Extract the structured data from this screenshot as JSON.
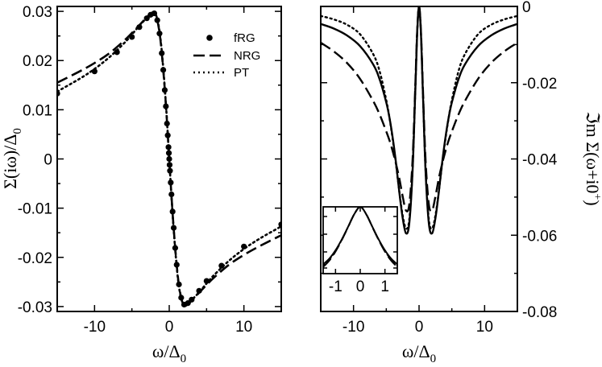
{
  "chart_data": [
    {
      "type": "line",
      "panel": "left",
      "xlabel": "ω/Δ",
      "xlabel_sub": "0",
      "ylabel": "Σ(iω)/Δ",
      "ylabel_sub": "0",
      "xlim": [
        -15,
        15
      ],
      "ylim": [
        -0.031,
        0.031
      ],
      "xticks": [
        -10,
        0,
        10
      ],
      "xtick_labels": [
        "-10",
        "0",
        "10"
      ],
      "yticks": [
        -0.03,
        -0.02,
        -0.01,
        0,
        0.01,
        0.02,
        0.03
      ],
      "ytick_labels": [
        "-0.03",
        "-0.02",
        "-0.01",
        "0",
        "0.01",
        "0.02",
        "0.03"
      ],
      "legend_position": "top-right",
      "legend": [
        "fRG",
        "NRG",
        "PT"
      ],
      "series": [
        {
          "name": "fRG",
          "style": "markers",
          "x": [
            -15,
            -10,
            -7,
            -5,
            -4,
            -3,
            -2.5,
            -2,
            -1.6,
            -1.3,
            -1.0,
            -0.8,
            -0.6,
            -0.45,
            -0.3,
            -0.2,
            -0.1,
            -0.05,
            0,
            0.05,
            0.1,
            0.2,
            0.3,
            0.45,
            0.6,
            0.8,
            1.0,
            1.3,
            1.6,
            2,
            2.5,
            3,
            4,
            5,
            7,
            10,
            15
          ],
          "y": [
            0.0133,
            0.0178,
            0.0217,
            0.0248,
            0.0268,
            0.0286,
            0.0293,
            0.0296,
            0.0282,
            0.0255,
            0.0215,
            0.0181,
            0.014,
            0.0107,
            0.0072,
            0.0048,
            0.0024,
            0.0012,
            0,
            -0.0012,
            -0.0024,
            -0.0048,
            -0.0072,
            -0.0107,
            -0.014,
            -0.0181,
            -0.0215,
            -0.0255,
            -0.0282,
            -0.0296,
            -0.0293,
            -0.0286,
            -0.0268,
            -0.0248,
            -0.0217,
            -0.0178,
            -0.0133
          ]
        },
        {
          "name": "NRG",
          "style": "dashed",
          "x": [
            -15,
            -12,
            -10,
            -8,
            -6,
            -5,
            -4,
            -3,
            -2.5,
            -2,
            -1.6,
            -1.2,
            -0.8,
            -0.4,
            0,
            0.4,
            0.8,
            1.2,
            1.6,
            2,
            2.5,
            3,
            4,
            5,
            6,
            8,
            10,
            12,
            15
          ],
          "y": [
            0.0155,
            0.0178,
            0.0195,
            0.0215,
            0.0241,
            0.0256,
            0.0272,
            0.0288,
            0.0295,
            0.0298,
            0.0282,
            0.0245,
            0.0181,
            0.0099,
            0,
            -0.0099,
            -0.0181,
            -0.0245,
            -0.0282,
            -0.0298,
            -0.0295,
            -0.0288,
            -0.0272,
            -0.0256,
            -0.0241,
            -0.0215,
            -0.0195,
            -0.0178,
            -0.0155
          ]
        },
        {
          "name": "PT",
          "style": "dotted",
          "x": [
            -15,
            -12,
            -10,
            -8,
            -6,
            -5,
            -4,
            -3,
            -2.5,
            -2,
            -1.6,
            -1.2,
            -0.8,
            -0.4,
            0,
            0.4,
            0.8,
            1.2,
            1.6,
            2,
            2.5,
            3,
            4,
            5,
            6,
            8,
            10,
            12,
            15
          ],
          "y": [
            0.0137,
            0.0163,
            0.0183,
            0.0207,
            0.0236,
            0.0253,
            0.0271,
            0.0287,
            0.0295,
            0.0298,
            0.0284,
            0.0248,
            0.0184,
            0.0101,
            0,
            -0.0101,
            -0.0184,
            -0.0248,
            -0.0284,
            -0.0298,
            -0.0295,
            -0.0287,
            -0.0271,
            -0.0253,
            -0.0236,
            -0.0207,
            -0.0183,
            -0.0163,
            -0.0137
          ]
        }
      ]
    },
    {
      "type": "line",
      "panel": "right",
      "xlabel": "ω/Δ",
      "xlabel_sub": "0",
      "ylabel": "ℑm Σ(ω+i0",
      "ylabel_sup": "+",
      "ylabel_close": ")",
      "xlim": [
        -15,
        15
      ],
      "ylim": [
        -0.08,
        0
      ],
      "xticks": [
        -10,
        0,
        10
      ],
      "xtick_labels": [
        "-10",
        "0",
        "10"
      ],
      "yticks": [
        0,
        -0.02,
        -0.04,
        -0.06,
        -0.08
      ],
      "ytick_labels": [
        "0",
        "-0.02",
        "-0.04",
        "-0.06",
        "-0.08"
      ],
      "series": [
        {
          "name": "fRG",
          "style": "solid",
          "x": [
            -15,
            -13,
            -11,
            -9,
            -7,
            -6,
            -5,
            -4.5,
            -4,
            -3.5,
            -3,
            -2.5,
            -2,
            -1.5,
            -1,
            -0.6,
            -0.3,
            0,
            0.3,
            0.6,
            1,
            1.5,
            2,
            2.5,
            3,
            3.5,
            4,
            4.5,
            5,
            6,
            7,
            9,
            11,
            13,
            15
          ],
          "y": [
            -0.0046,
            -0.0058,
            -0.0076,
            -0.0104,
            -0.0152,
            -0.0192,
            -0.0252,
            -0.0293,
            -0.0347,
            -0.0413,
            -0.0489,
            -0.0555,
            -0.0595,
            -0.057,
            -0.0435,
            -0.0235,
            -0.0075,
            0,
            -0.0075,
            -0.0235,
            -0.0435,
            -0.057,
            -0.0595,
            -0.0555,
            -0.0489,
            -0.0413,
            -0.0347,
            -0.0293,
            -0.0252,
            -0.0192,
            -0.0152,
            -0.0104,
            -0.0076,
            -0.0058,
            -0.0046
          ]
        },
        {
          "name": "NRG",
          "style": "dashed",
          "x": [
            -15,
            -13,
            -11,
            -9,
            -7,
            -6,
            -5,
            -4.5,
            -4,
            -3.5,
            -3,
            -2.5,
            -2,
            -1.5,
            -1,
            -0.6,
            -0.3,
            0,
            0.3,
            0.6,
            1,
            1.5,
            2,
            2.5,
            3,
            3.5,
            4,
            4.5,
            5,
            6,
            7,
            9,
            11,
            13,
            15
          ],
          "y": [
            -0.0095,
            -0.0118,
            -0.0148,
            -0.019,
            -0.0248,
            -0.0284,
            -0.0328,
            -0.0352,
            -0.0381,
            -0.0414,
            -0.0452,
            -0.0498,
            -0.0535,
            -0.052,
            -0.0405,
            -0.022,
            -0.007,
            0,
            -0.007,
            -0.022,
            -0.0405,
            -0.052,
            -0.0535,
            -0.0498,
            -0.0452,
            -0.0414,
            -0.0381,
            -0.0352,
            -0.0328,
            -0.0284,
            -0.0248,
            -0.019,
            -0.0148,
            -0.0118,
            -0.0095
          ]
        },
        {
          "name": "PT",
          "style": "dotted",
          "x": [
            -15,
            -13,
            -11,
            -9,
            -7,
            -6,
            -5,
            -4.5,
            -4,
            -3.5,
            -3,
            -2.5,
            -2,
            -1.5,
            -1,
            -0.6,
            -0.3,
            0,
            0.3,
            0.6,
            1,
            1.5,
            2,
            2.5,
            3,
            3.5,
            4,
            4.5,
            5,
            6,
            7,
            9,
            11,
            13,
            15
          ],
          "y": [
            -0.0025,
            -0.0034,
            -0.0048,
            -0.0073,
            -0.0125,
            -0.0171,
            -0.0246,
            -0.0294,
            -0.0351,
            -0.0416,
            -0.0487,
            -0.0548,
            -0.0582,
            -0.056,
            -0.043,
            -0.0232,
            -0.0074,
            0,
            -0.0074,
            -0.0232,
            -0.043,
            -0.056,
            -0.0582,
            -0.0548,
            -0.0487,
            -0.0416,
            -0.0351,
            -0.0294,
            -0.0246,
            -0.0171,
            -0.0125,
            -0.0073,
            -0.0048,
            -0.0034,
            -0.0025
          ]
        }
      ],
      "inset": {
        "xlim": [
          -1.5,
          1.5
        ],
        "ylim": [
          -0.04,
          0
        ],
        "xticks": [
          -1,
          0,
          1
        ],
        "xtick_labels": [
          "-1",
          "0",
          "1"
        ],
        "series": [
          {
            "name": "fRG",
            "style": "solid",
            "x": [
              -1.5,
              -1.25,
              -1.0,
              -0.75,
              -0.5,
              -0.25,
              0,
              0.25,
              0.5,
              0.75,
              1.0,
              1.25,
              1.5
            ],
            "y": [
              -0.0344,
              -0.031,
              -0.026,
              -0.0196,
              -0.0122,
              -0.0046,
              0,
              -0.0046,
              -0.0122,
              -0.0196,
              -0.026,
              -0.031,
              -0.0344
            ]
          },
          {
            "name": "NRG",
            "style": "dashed",
            "x": [
              -1.5,
              -1.25,
              -1.0,
              -0.75,
              -0.5,
              -0.25,
              0,
              0.25,
              0.5,
              0.75,
              1.0,
              1.25,
              1.5
            ],
            "y": [
              -0.036,
              -0.0322,
              -0.0268,
              -0.02,
              -0.0124,
              -0.0047,
              0,
              -0.0047,
              -0.0124,
              -0.02,
              -0.0268,
              -0.0322,
              -0.036
            ]
          },
          {
            "name": "PT",
            "style": "dotted",
            "x": [
              -1.5,
              -1.25,
              -1.0,
              -0.75,
              -0.5,
              -0.25,
              0,
              0.25,
              0.5,
              0.75,
              1.0,
              1.25,
              1.5
            ],
            "y": [
              -0.0352,
              -0.0316,
              -0.0264,
              -0.0198,
              -0.0123,
              -0.0046,
              0,
              -0.0046,
              -0.0123,
              -0.0198,
              -0.0264,
              -0.0316,
              -0.0352
            ]
          }
        ]
      }
    }
  ]
}
